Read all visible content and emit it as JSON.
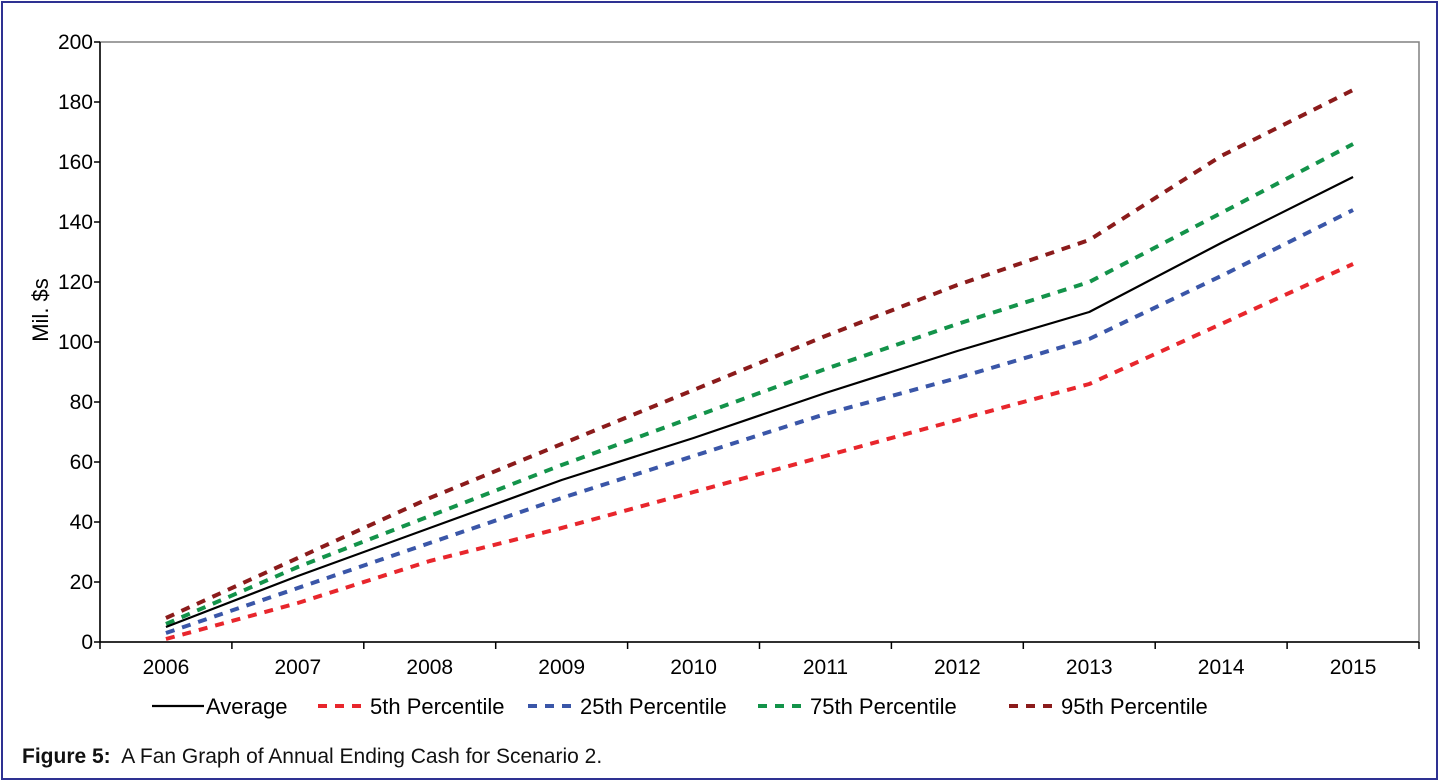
{
  "chart_data": {
    "type": "line",
    "ylabel": "Mil. $s",
    "ylim": [
      0,
      200
    ],
    "yticks": [
      0,
      20,
      40,
      60,
      80,
      100,
      120,
      140,
      160,
      180,
      200
    ],
    "categories": [
      "2006",
      "2007",
      "2008",
      "2009",
      "2010",
      "2011",
      "2012",
      "2013",
      "2014",
      "2015"
    ],
    "grid": false,
    "legend_position": "bottom",
    "series": [
      {
        "name": "Average",
        "color": "#000000",
        "style": "solid",
        "values": [
          5,
          22,
          38,
          54,
          68,
          83,
          97,
          110,
          133,
          155
        ]
      },
      {
        "name": "5th Percentile",
        "color": "#e8262c",
        "style": "dashed",
        "values": [
          1,
          13,
          27,
          38,
          50,
          62,
          74,
          86,
          106,
          126
        ]
      },
      {
        "name": "25th Percentile",
        "color": "#3a56a8",
        "style": "dashed",
        "values": [
          3,
          18,
          33,
          48,
          62,
          76,
          88,
          101,
          122,
          144
        ]
      },
      {
        "name": "75th Percentile",
        "color": "#13934a",
        "style": "dashed",
        "values": [
          6,
          25,
          42,
          59,
          75,
          91,
          106,
          120,
          143,
          166
        ]
      },
      {
        "name": "95th Percentile",
        "color": "#8b1b1b",
        "style": "dashed",
        "values": [
          8,
          28,
          48,
          66,
          84,
          102,
          119,
          134,
          162,
          184
        ]
      }
    ]
  },
  "caption": {
    "label": "Figure 5:",
    "text": "A Fan Graph of Annual Ending Cash for Scenario 2."
  }
}
